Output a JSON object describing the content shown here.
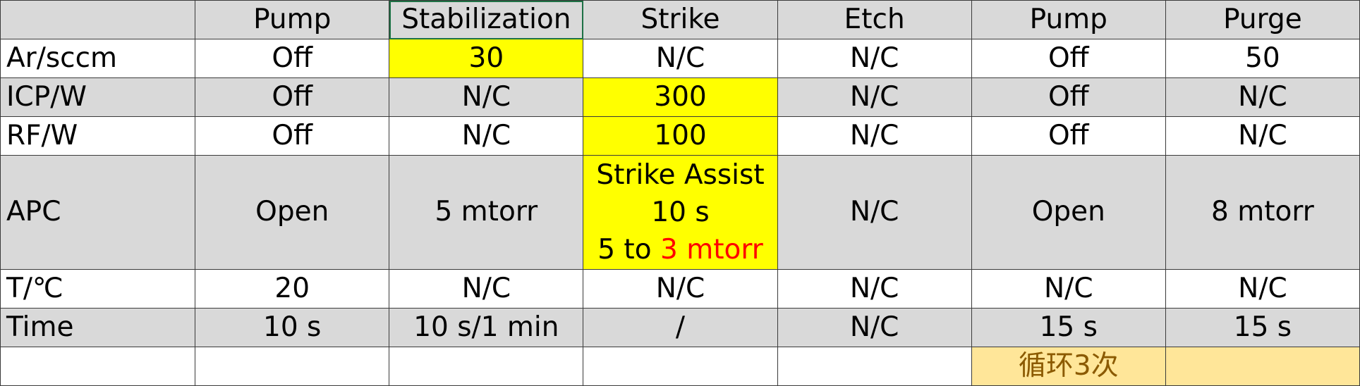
{
  "table": {
    "header": [
      "",
      "Pump",
      "Stabilization",
      "Strike",
      "Etch",
      "Pump",
      "Purge"
    ],
    "rows": [
      {
        "label": "Ar/sccm",
        "cells": [
          "Off",
          "30",
          "N/C",
          "N/C",
          "Off",
          "50"
        ]
      },
      {
        "label": "ICP/W",
        "cells": [
          "Off",
          "N/C",
          "300",
          "N/C",
          "Off",
          "N/C"
        ]
      },
      {
        "label": "RF/W",
        "cells": [
          "Off",
          "N/C",
          "100",
          "N/C",
          "Off",
          "N/C"
        ]
      },
      {
        "label": "APC",
        "cells": [
          "Open",
          "5 mtorr",
          "",
          "N/C",
          "Open",
          "8 mtorr"
        ],
        "strike": {
          "line1": "Strike Assist",
          "line2": "10 s",
          "line3_prefix": "5 to",
          "line3_red": "3 mtorr"
        }
      },
      {
        "label": "T/℃",
        "cells": [
          "20",
          "N/C",
          "N/C",
          "N/C",
          "N/C",
          "N/C"
        ]
      },
      {
        "label": "Time",
        "cells": [
          "10 s",
          "10 s/1 min",
          "/",
          "N/C",
          "15 s",
          "15 s"
        ]
      },
      {
        "label": "",
        "cells": [
          "",
          "",
          "",
          "",
          "循环3次",
          ""
        ]
      }
    ]
  },
  "colors": {
    "gray_row": "#d9d9d9",
    "yellow_highlight": "#ffff00",
    "light_highlight": "#ffe699",
    "red_text": "#ff0000",
    "grid": "#3a3a3a"
  }
}
